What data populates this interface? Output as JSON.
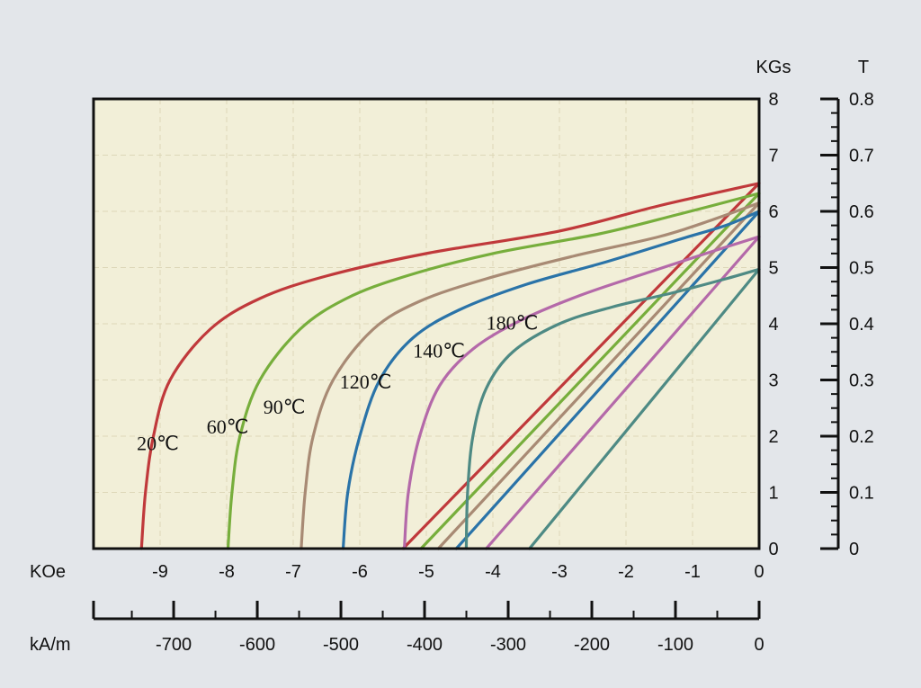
{
  "chart_data": {
    "type": "line",
    "title": "",
    "units": {
      "x_primary": "KOe",
      "x_secondary": "kA/m",
      "y_primary": "KGs",
      "y_secondary": "T"
    },
    "x_range": [
      -10.0,
      0
    ],
    "y_range": [
      0,
      8
    ],
    "x_ticks": [
      "-9",
      "-8",
      "-7",
      "-6",
      "-5",
      "-4",
      "-3",
      "-2",
      "-1",
      "0"
    ],
    "y_ticks": [
      "0",
      "1",
      "2",
      "3",
      "4",
      "5",
      "6",
      "7",
      "8"
    ],
    "x2_ticks": [
      "-700",
      "-600",
      "-500",
      "-400",
      "-300",
      "-200",
      "-100",
      "0"
    ],
    "y2_ticks": [
      "0",
      "0.1",
      "0.2",
      "0.3",
      "0.4",
      "0.5",
      "0.6",
      "0.7",
      "0.8"
    ],
    "grid": true,
    "series": [
      {
        "name": "20℃",
        "color": "#c0393b",
        "demag_points": [
          [
            -9.28,
            0
          ],
          [
            -9.22,
            1.0
          ],
          [
            -9.1,
            2.0
          ],
          [
            -8.85,
            3.0
          ],
          [
            -8.25,
            3.9
          ],
          [
            -7.5,
            4.45
          ],
          [
            -6.5,
            4.85
          ],
          [
            -5,
            5.25
          ],
          [
            -3,
            5.65
          ],
          [
            -1.5,
            6.1
          ],
          [
            0,
            6.5
          ]
        ],
        "recoil_points": [
          [
            -5.35,
            0
          ],
          [
            0,
            6.5
          ]
        ],
        "label_anchor": [
          -9.35,
          1.75
        ]
      },
      {
        "name": "60℃",
        "color": "#77ae3c",
        "demag_points": [
          [
            -7.98,
            0
          ],
          [
            -7.92,
            1.0
          ],
          [
            -7.8,
            2.0
          ],
          [
            -7.5,
            3.0
          ],
          [
            -6.9,
            3.9
          ],
          [
            -6.2,
            4.45
          ],
          [
            -5.3,
            4.85
          ],
          [
            -4,
            5.25
          ],
          [
            -2.4,
            5.6
          ],
          [
            -1.2,
            5.95
          ],
          [
            0,
            6.32
          ]
        ],
        "recoil_points": [
          [
            -5.08,
            0
          ],
          [
            0,
            6.32
          ]
        ],
        "label_anchor": [
          -8.3,
          2.05
        ]
      },
      {
        "name": "90℃",
        "color": "#a88a74",
        "demag_points": [
          [
            -6.88,
            0
          ],
          [
            -6.82,
            1.0
          ],
          [
            -6.7,
            2.0
          ],
          [
            -6.4,
            3.0
          ],
          [
            -5.8,
            3.9
          ],
          [
            -5.1,
            4.4
          ],
          [
            -4.1,
            4.8
          ],
          [
            -2.8,
            5.2
          ],
          [
            -1.5,
            5.55
          ],
          [
            -0.7,
            5.85
          ],
          [
            0,
            6.15
          ]
        ],
        "recoil_points": [
          [
            -4.82,
            0
          ],
          [
            0,
            6.15
          ]
        ],
        "label_anchor": [
          -7.45,
          2.4
        ]
      },
      {
        "name": "120℃",
        "color": "#2a73a8",
        "demag_points": [
          [
            -6.25,
            0
          ],
          [
            -6.18,
            1.0
          ],
          [
            -6.0,
            2.0
          ],
          [
            -5.7,
            3.0
          ],
          [
            -5.2,
            3.75
          ],
          [
            -4.5,
            4.25
          ],
          [
            -3.5,
            4.7
          ],
          [
            -2.3,
            5.1
          ],
          [
            -1.2,
            5.5
          ],
          [
            -0.5,
            5.75
          ],
          [
            0,
            6.0
          ]
        ],
        "recoil_points": [
          [
            -4.55,
            0
          ],
          [
            0,
            6.0
          ]
        ],
        "label_anchor": [
          -6.3,
          2.85
        ]
      },
      {
        "name": "140℃",
        "color": "#b469a9",
        "demag_points": [
          [
            -5.33,
            0
          ],
          [
            -5.27,
            1.0
          ],
          [
            -5.1,
            2.0
          ],
          [
            -4.8,
            2.9
          ],
          [
            -4.3,
            3.55
          ],
          [
            -3.6,
            4.05
          ],
          [
            -2.7,
            4.5
          ],
          [
            -1.7,
            4.9
          ],
          [
            -0.8,
            5.25
          ],
          [
            0,
            5.55
          ]
        ],
        "recoil_points": [
          [
            -4.1,
            0
          ],
          [
            0,
            5.55
          ]
        ],
        "label_anchor": [
          -5.2,
          3.4
        ]
      },
      {
        "name": "180℃",
        "color": "#4e8a84",
        "demag_points": [
          [
            -4.4,
            0
          ],
          [
            -4.38,
            1.0
          ],
          [
            -4.3,
            2.0
          ],
          [
            -4.1,
            2.85
          ],
          [
            -3.7,
            3.5
          ],
          [
            -3.0,
            4.0
          ],
          [
            -2.2,
            4.3
          ],
          [
            -1.3,
            4.55
          ],
          [
            -0.5,
            4.8
          ],
          [
            0,
            4.97
          ]
        ],
        "recoil_points": [
          [
            -3.45,
            0
          ],
          [
            0,
            4.97
          ]
        ],
        "label_anchor": [
          -4.1,
          3.9
        ]
      }
    ]
  },
  "colors": {
    "plot_background": "#f2efd8",
    "page_background": "#e3e6ea",
    "grid": "#ddd7b8",
    "axis": "#111111"
  }
}
